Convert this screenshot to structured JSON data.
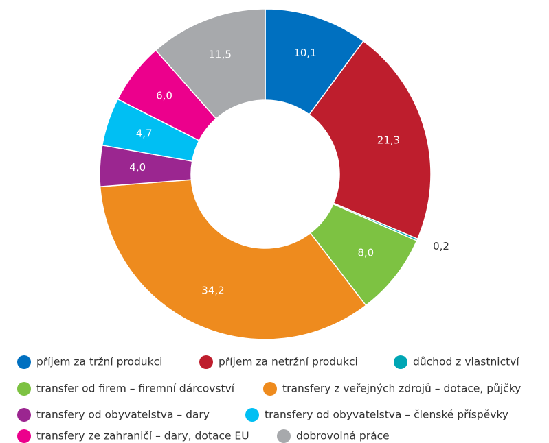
{
  "chart_data": {
    "type": "donut",
    "categories": [
      "příjem za tržní produkci",
      "příjem za netržní produkci",
      "důchod z vlastnictví",
      "transfer od firem – firemní dárcovství",
      "transfery z veřejných zdrojů – dotace, půjčky",
      "transfery od obyvatelstva – dary",
      "transfery od obyvatelstva – členské příspěvky",
      "transfery ze zahraničí – dary, dotace EU",
      "dobrovolná práce"
    ],
    "values": [
      10.1,
      21.3,
      0.2,
      8.0,
      34.2,
      4.0,
      4.7,
      6.0,
      11.5
    ],
    "value_labels": [
      "10,1",
      "21,3",
      "0,2",
      "8,0",
      "34,2",
      "4,0",
      "4,7",
      "6,0",
      "11,5"
    ],
    "colors": [
      "#0070c0",
      "#be1e2d",
      "#00a6b4",
      "#7dc242",
      "#ee8b1e",
      "#9b2690",
      "#00bff3",
      "#ec008c",
      "#a7a9ac"
    ]
  }
}
